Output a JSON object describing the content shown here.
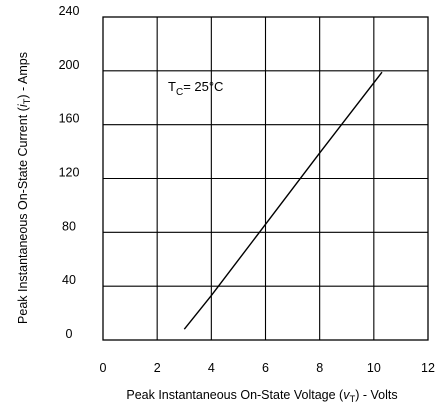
{
  "chart_data": {
    "type": "line",
    "title": "",
    "xlabel": "Peak Instantaneous On-State Voltage (vT) - Volts",
    "xlabel_parts": {
      "pre": "Peak Instantaneous On-State Voltage (",
      "sym": "v",
      "sub": "T",
      "post": ") - Volts"
    },
    "ylabel": "Peak Instantaneous On-State Current (iT) - Amps",
    "ylabel_parts": {
      "pre": "Peak Instantaneous On-State Current (",
      "sym": "i",
      "sub": "T",
      "post": ") - Amps"
    },
    "xlim": [
      0,
      12
    ],
    "ylim": [
      0,
      240
    ],
    "x_ticks": [
      "0",
      "2",
      "4",
      "6",
      "8",
      "10",
      "12"
    ],
    "y_ticks": [
      "0",
      "40",
      "80",
      "120",
      "160",
      "200",
      "240"
    ],
    "grid": true,
    "annotation": {
      "main": "T",
      "sub": "C",
      "rest": "= 25°C"
    },
    "series": [
      {
        "x": [
          3.0,
          4.0,
          6.0,
          8.0,
          10.3
        ],
        "y": [
          8,
          33,
          86,
          139,
          199
        ]
      }
    ]
  }
}
